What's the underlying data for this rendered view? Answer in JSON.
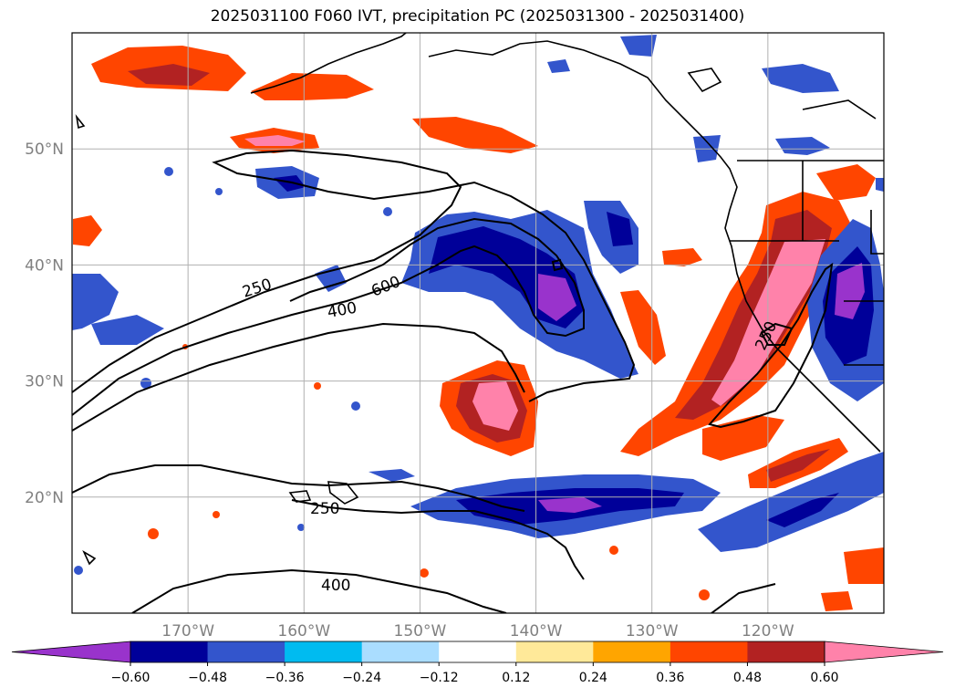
{
  "title": "2025031100 F060 IVT, precipitation PC (2025031300 - 2025031400)",
  "map": {
    "lon_range": [
      -180,
      -110
    ],
    "lat_range": [
      10,
      60
    ],
    "lon_ticks": [
      {
        "value": -170,
        "label": "170°W"
      },
      {
        "value": -160,
        "label": "160°W"
      },
      {
        "value": -150,
        "label": "150°W"
      },
      {
        "value": -140,
        "label": "140°W"
      },
      {
        "value": -130,
        "label": "130°W"
      },
      {
        "value": -120,
        "label": "120°W"
      }
    ],
    "lat_ticks": [
      {
        "value": 50,
        "label": "50°N"
      },
      {
        "value": 40,
        "label": "40°N"
      },
      {
        "value": 30,
        "label": "30°N"
      },
      {
        "value": 20,
        "label": "20°N"
      }
    ],
    "gridlines": true,
    "contour_labels": [
      "250",
      "600",
      "400",
      "250",
      "400",
      "250"
    ]
  },
  "colorbar": {
    "orientation": "horizontal",
    "extend": "both",
    "colors": [
      "#9933CC",
      "#000099",
      "#3355CC",
      "#00BBF0",
      "#AADDFF",
      "#FFFFFF",
      "#FFE999",
      "#FFA500",
      "#FF4500",
      "#B22222",
      "#FF82AA"
    ],
    "ticks": [
      "−0.60",
      "−0.48",
      "−0.36",
      "−0.24",
      "−0.12",
      "0.12",
      "0.24",
      "0.36",
      "0.48",
      "0.60"
    ]
  }
}
